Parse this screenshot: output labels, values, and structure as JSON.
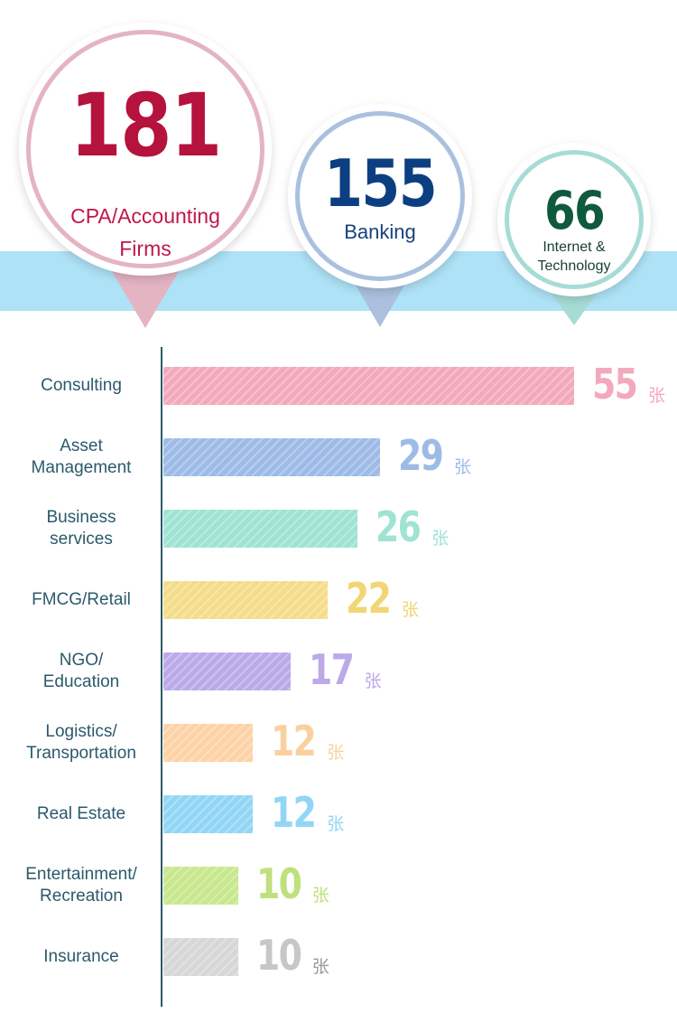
{
  "top_stats": [
    {
      "value": "181",
      "label": "CPA/Accounting\nFirms",
      "color": "#b5123e",
      "label_color": "#c0174a",
      "ring_color": "#e4b4c3"
    },
    {
      "value": "155",
      "label": "Banking",
      "color": "#0c3f82",
      "label_color": "#14427f",
      "ring_color": "#aac0de"
    },
    {
      "value": "66",
      "label": "Internet &\nTechnology",
      "color": "#0f5a3c",
      "label_color": "#173f32",
      "ring_color": "#a7dcd6"
    }
  ],
  "chart_data": {
    "type": "bar",
    "orientation": "horizontal",
    "categories": [
      "Consulting",
      "Asset\nManagement",
      "Business\nservices",
      "FMCG/Retail",
      "NGO/\nEducation",
      "Logistics/\nTransportation",
      "Real Estate",
      "Entertainment/\nRecreation",
      "Insurance"
    ],
    "values": [
      55,
      29,
      26,
      22,
      17,
      12,
      12,
      10,
      10
    ],
    "value_labels": [
      "55",
      "29",
      "26",
      "22",
      "17",
      "12",
      "12",
      "10",
      "10"
    ],
    "unit": "张",
    "colors": [
      "#f3a9bb",
      "#9dbbe6",
      "#9fe3d3",
      "#f5dc8a",
      "#bba9e8",
      "#fdd2a6",
      "#92d6f6",
      "#c8e88d",
      "#d7d7d7"
    ],
    "value_colors": [
      "#f3a9bb",
      "#9dbbe6",
      "#9fe3d3",
      "#f2d574",
      "#bba9e8",
      "#fbd0a1",
      "#92d6f6",
      "#bfe07e",
      "#c7c7c7"
    ],
    "unit_colors": [
      "#f3a9bb",
      "#9dbbe6",
      "#9fe3d3",
      "#f2d574",
      "#bba9e8",
      "#fbd0a1",
      "#92d6f6",
      "#bfe07e",
      "#9a9a9a"
    ],
    "grid": false,
    "axis_color": "#2c5968",
    "label_color": "#2b5a6b"
  }
}
